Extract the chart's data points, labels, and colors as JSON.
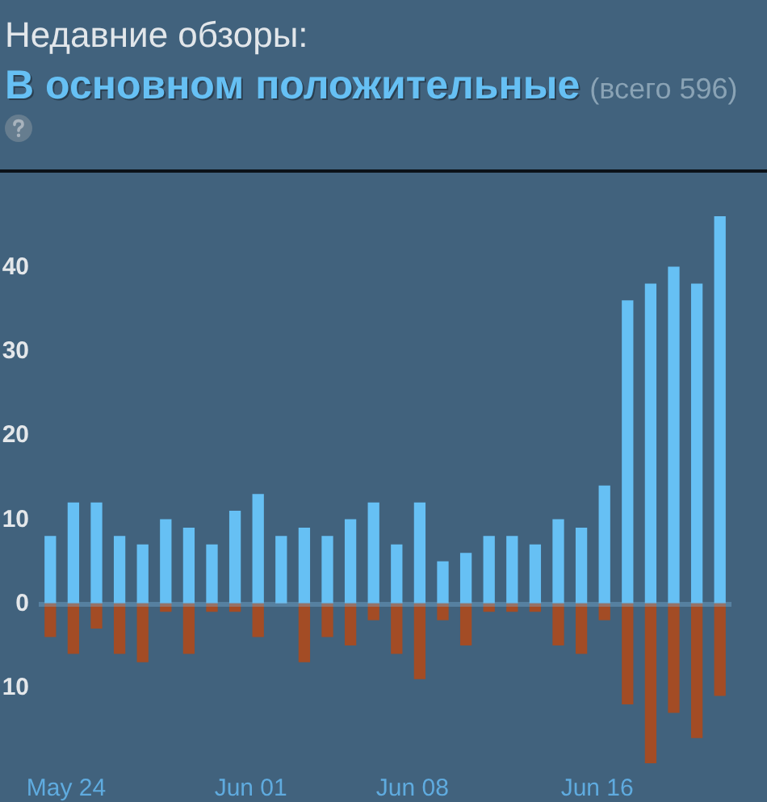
{
  "chart_data": {
    "type": "bar",
    "title": "Недавние обзоры:",
    "subtitle": "В основном положительные",
    "annotations": [
      "(всего 596)"
    ],
    "categories": [
      null,
      "May 24",
      null,
      null,
      null,
      null,
      null,
      null,
      null,
      "Jun 01",
      null,
      null,
      null,
      null,
      null,
      null,
      "Jun 08",
      null,
      null,
      null,
      null,
      null,
      null,
      null,
      "Jun 16",
      null,
      null,
      null,
      null,
      null
    ],
    "stacked": true,
    "series": [
      {
        "color": "#66c0f4",
        "values": [
          8,
          12,
          12,
          8,
          7,
          10,
          9,
          7,
          11,
          13,
          8,
          9,
          8,
          10,
          12,
          7,
          12,
          5,
          6,
          8,
          8,
          7,
          10,
          9,
          14,
          36,
          38,
          40,
          38,
          46
        ]
      },
      {
        "color": "#a34c25",
        "values": [
          -4,
          -6,
          -3,
          -6,
          -7,
          -1,
          -6,
          -1,
          -1,
          -4,
          0,
          -7,
          -4,
          -5,
          -2,
          -6,
          -9,
          -2,
          -5,
          -1,
          -1,
          -1,
          -5,
          -6,
          -2,
          -12,
          -19,
          -13,
          -16,
          -11
        ]
      }
    ],
    "ylim": [
      -19,
      46
    ],
    "yticks": [
      {
        "value": -10,
        "label": "10"
      },
      0,
      10,
      20,
      30,
      40
    ],
    "ref_lines": [
      {
        "axis": "y",
        "value": 0,
        "color": "#7db9e1"
      }
    ]
  }
}
